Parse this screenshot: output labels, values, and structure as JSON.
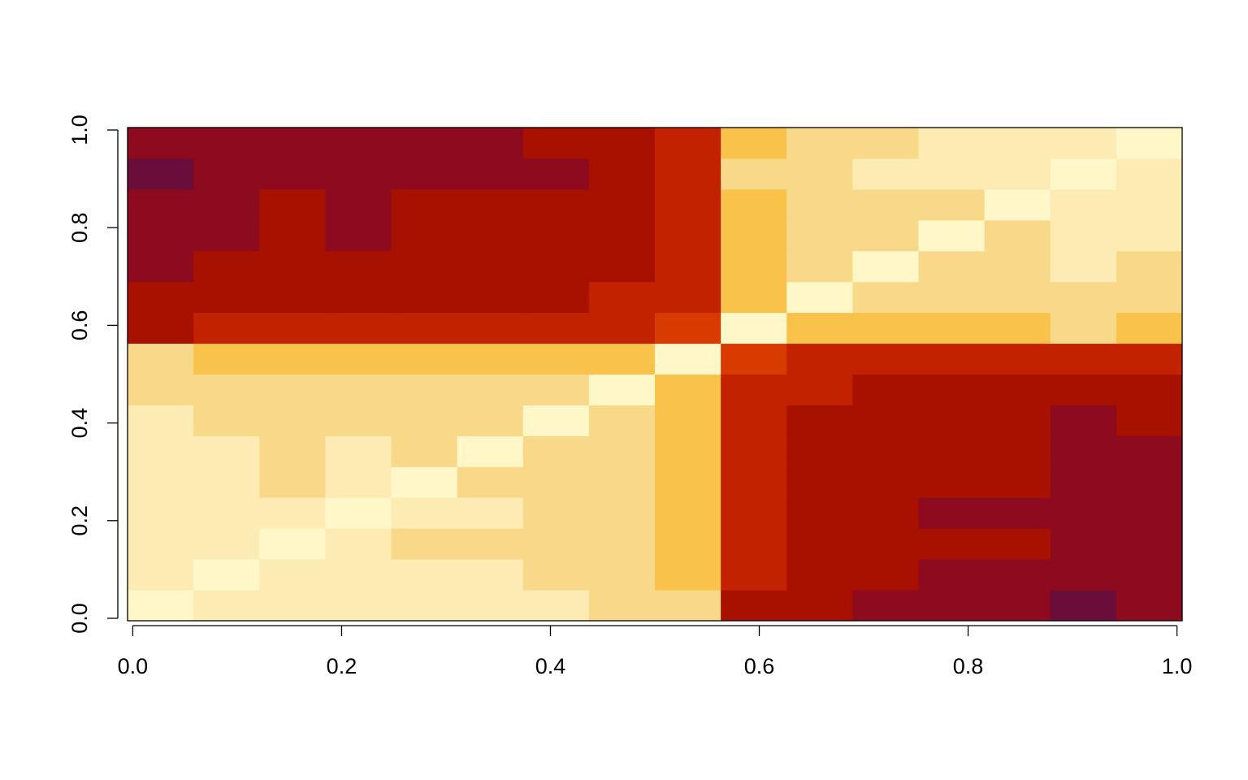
{
  "chart_data": {
    "type": "heatmap",
    "xlim": [
      -0.005,
      1.005
    ],
    "ylim": [
      -0.005,
      1.005
    ],
    "xticks": [
      {
        "value": 0,
        "label": "0.0"
      },
      0.2,
      0.4,
      0.6,
      0.8,
      {
        "value": 1,
        "label": "1.0"
      }
    ],
    "yticks": [
      {
        "value": 0,
        "label": "0.0"
      },
      0.2,
      0.4,
      0.6,
      0.8,
      {
        "value": 1,
        "label": "1.0"
      }
    ],
    "zlim": [
      0,
      1
    ],
    "colors": [
      "#6B0D3A",
      "#8E0A1E",
      "#A81000",
      "#C22200",
      "#D93A00",
      "#E85B00",
      "#F27E00",
      "#F8A100",
      "#F9C24A",
      "#F8D98A",
      "#FCEBB2",
      "#FFF7C8"
    ],
    "z": [
      [
        1,
        0.9,
        0.88,
        0.9,
        0.88,
        0.88,
        0.86,
        0.83,
        0.76,
        0.24,
        0.17,
        0.14,
        0.12,
        0.12,
        0.07,
        0.1
      ],
      [
        0.9,
        1,
        0.84,
        0.86,
        0.84,
        0.84,
        0.82,
        0.8,
        0.73,
        0.27,
        0.2,
        0.18,
        0.16,
        0.16,
        0.12,
        0.14
      ],
      [
        0.88,
        0.84,
        1,
        0.84,
        0.82,
        0.82,
        0.8,
        0.78,
        0.72,
        0.28,
        0.22,
        0.2,
        0.18,
        0.18,
        0.14,
        0.16
      ],
      [
        0.9,
        0.86,
        0.84,
        1,
        0.84,
        0.84,
        0.82,
        0.8,
        0.73,
        0.27,
        0.2,
        0.18,
        0.16,
        0.16,
        0.12,
        0.14
      ],
      [
        0.88,
        0.84,
        0.82,
        0.84,
        1,
        0.82,
        0.8,
        0.78,
        0.72,
        0.28,
        0.22,
        0.2,
        0.18,
        0.18,
        0.14,
        0.16
      ],
      [
        0.88,
        0.84,
        0.82,
        0.84,
        0.82,
        1,
        0.8,
        0.78,
        0.72,
        0.28,
        0.22,
        0.2,
        0.18,
        0.18,
        0.14,
        0.16
      ],
      [
        0.86,
        0.82,
        0.8,
        0.82,
        0.8,
        0.8,
        1,
        0.76,
        0.71,
        0.29,
        0.24,
        0.22,
        0.2,
        0.2,
        0.16,
        0.18
      ],
      [
        0.83,
        0.8,
        0.78,
        0.8,
        0.78,
        0.78,
        0.76,
        1,
        0.69,
        0.31,
        0.26,
        0.24,
        0.22,
        0.22,
        0.19,
        0.2
      ],
      [
        0.76,
        0.73,
        0.72,
        0.73,
        0.72,
        0.72,
        0.71,
        0.69,
        1,
        0.35,
        0.31,
        0.29,
        0.28,
        0.28,
        0.25,
        0.27
      ],
      [
        0.24,
        0.27,
        0.28,
        0.27,
        0.28,
        0.28,
        0.29,
        0.31,
        0.35,
        1,
        0.69,
        0.71,
        0.72,
        0.72,
        0.75,
        0.73
      ],
      [
        0.17,
        0.2,
        0.22,
        0.2,
        0.22,
        0.22,
        0.24,
        0.26,
        0.31,
        0.69,
        1,
        0.76,
        0.78,
        0.78,
        0.82,
        0.8
      ],
      [
        0.14,
        0.18,
        0.2,
        0.18,
        0.2,
        0.2,
        0.22,
        0.24,
        0.29,
        0.71,
        0.76,
        1,
        0.8,
        0.8,
        0.84,
        0.82
      ],
      [
        0.12,
        0.16,
        0.18,
        0.16,
        0.18,
        0.18,
        0.2,
        0.22,
        0.28,
        0.72,
        0.78,
        0.8,
        1,
        0.82,
        0.86,
        0.84
      ],
      [
        0.12,
        0.16,
        0.18,
        0.16,
        0.18,
        0.18,
        0.2,
        0.22,
        0.28,
        0.72,
        0.78,
        0.8,
        0.82,
        1,
        0.86,
        0.84
      ],
      [
        0.07,
        0.12,
        0.14,
        0.12,
        0.14,
        0.14,
        0.16,
        0.19,
        0.25,
        0.75,
        0.82,
        0.84,
        0.86,
        0.86,
        1,
        0.88
      ],
      [
        0.1,
        0.14,
        0.16,
        0.14,
        0.16,
        0.16,
        0.18,
        0.2,
        0.27,
        0.73,
        0.8,
        0.82,
        0.84,
        0.84,
        0.88,
        1
      ]
    ]
  }
}
